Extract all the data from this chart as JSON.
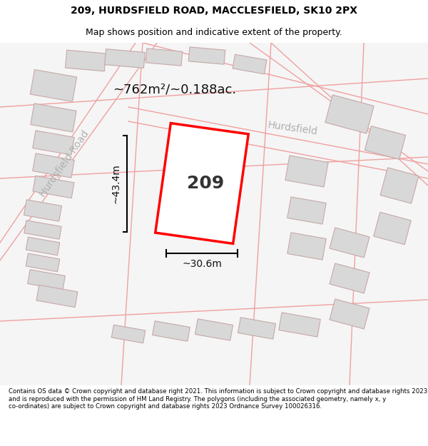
{
  "title": "209, HURDSFIELD ROAD, MACCLESFIELD, SK10 2PX",
  "subtitle": "Map shows position and indicative extent of the property.",
  "footer": "Contains OS data © Crown copyright and database right 2021. This information is subject to Crown copyright and database rights 2023 and is reproduced with the permission of HM Land Registry. The polygons (including the associated geometry, namely x, y co-ordinates) are subject to Crown copyright and database rights 2023 Ordnance Survey 100026316.",
  "area_label": "~762m²/~0.188ac.",
  "width_label": "~30.6m",
  "height_label": "~43.4m",
  "property_number": "209",
  "road_label_diag": "Hurdsfield Road",
  "road_label_top": "Hurdsfield",
  "map_bg": "#f5f5f5",
  "property_fill": "#ffffff",
  "property_edge": "#ff0000",
  "building_fill": "#d8d8d8",
  "road_line_color": "#f0a0a0",
  "title_color": "#000000",
  "footer_color": "#000000",
  "measure_color": "#000000"
}
